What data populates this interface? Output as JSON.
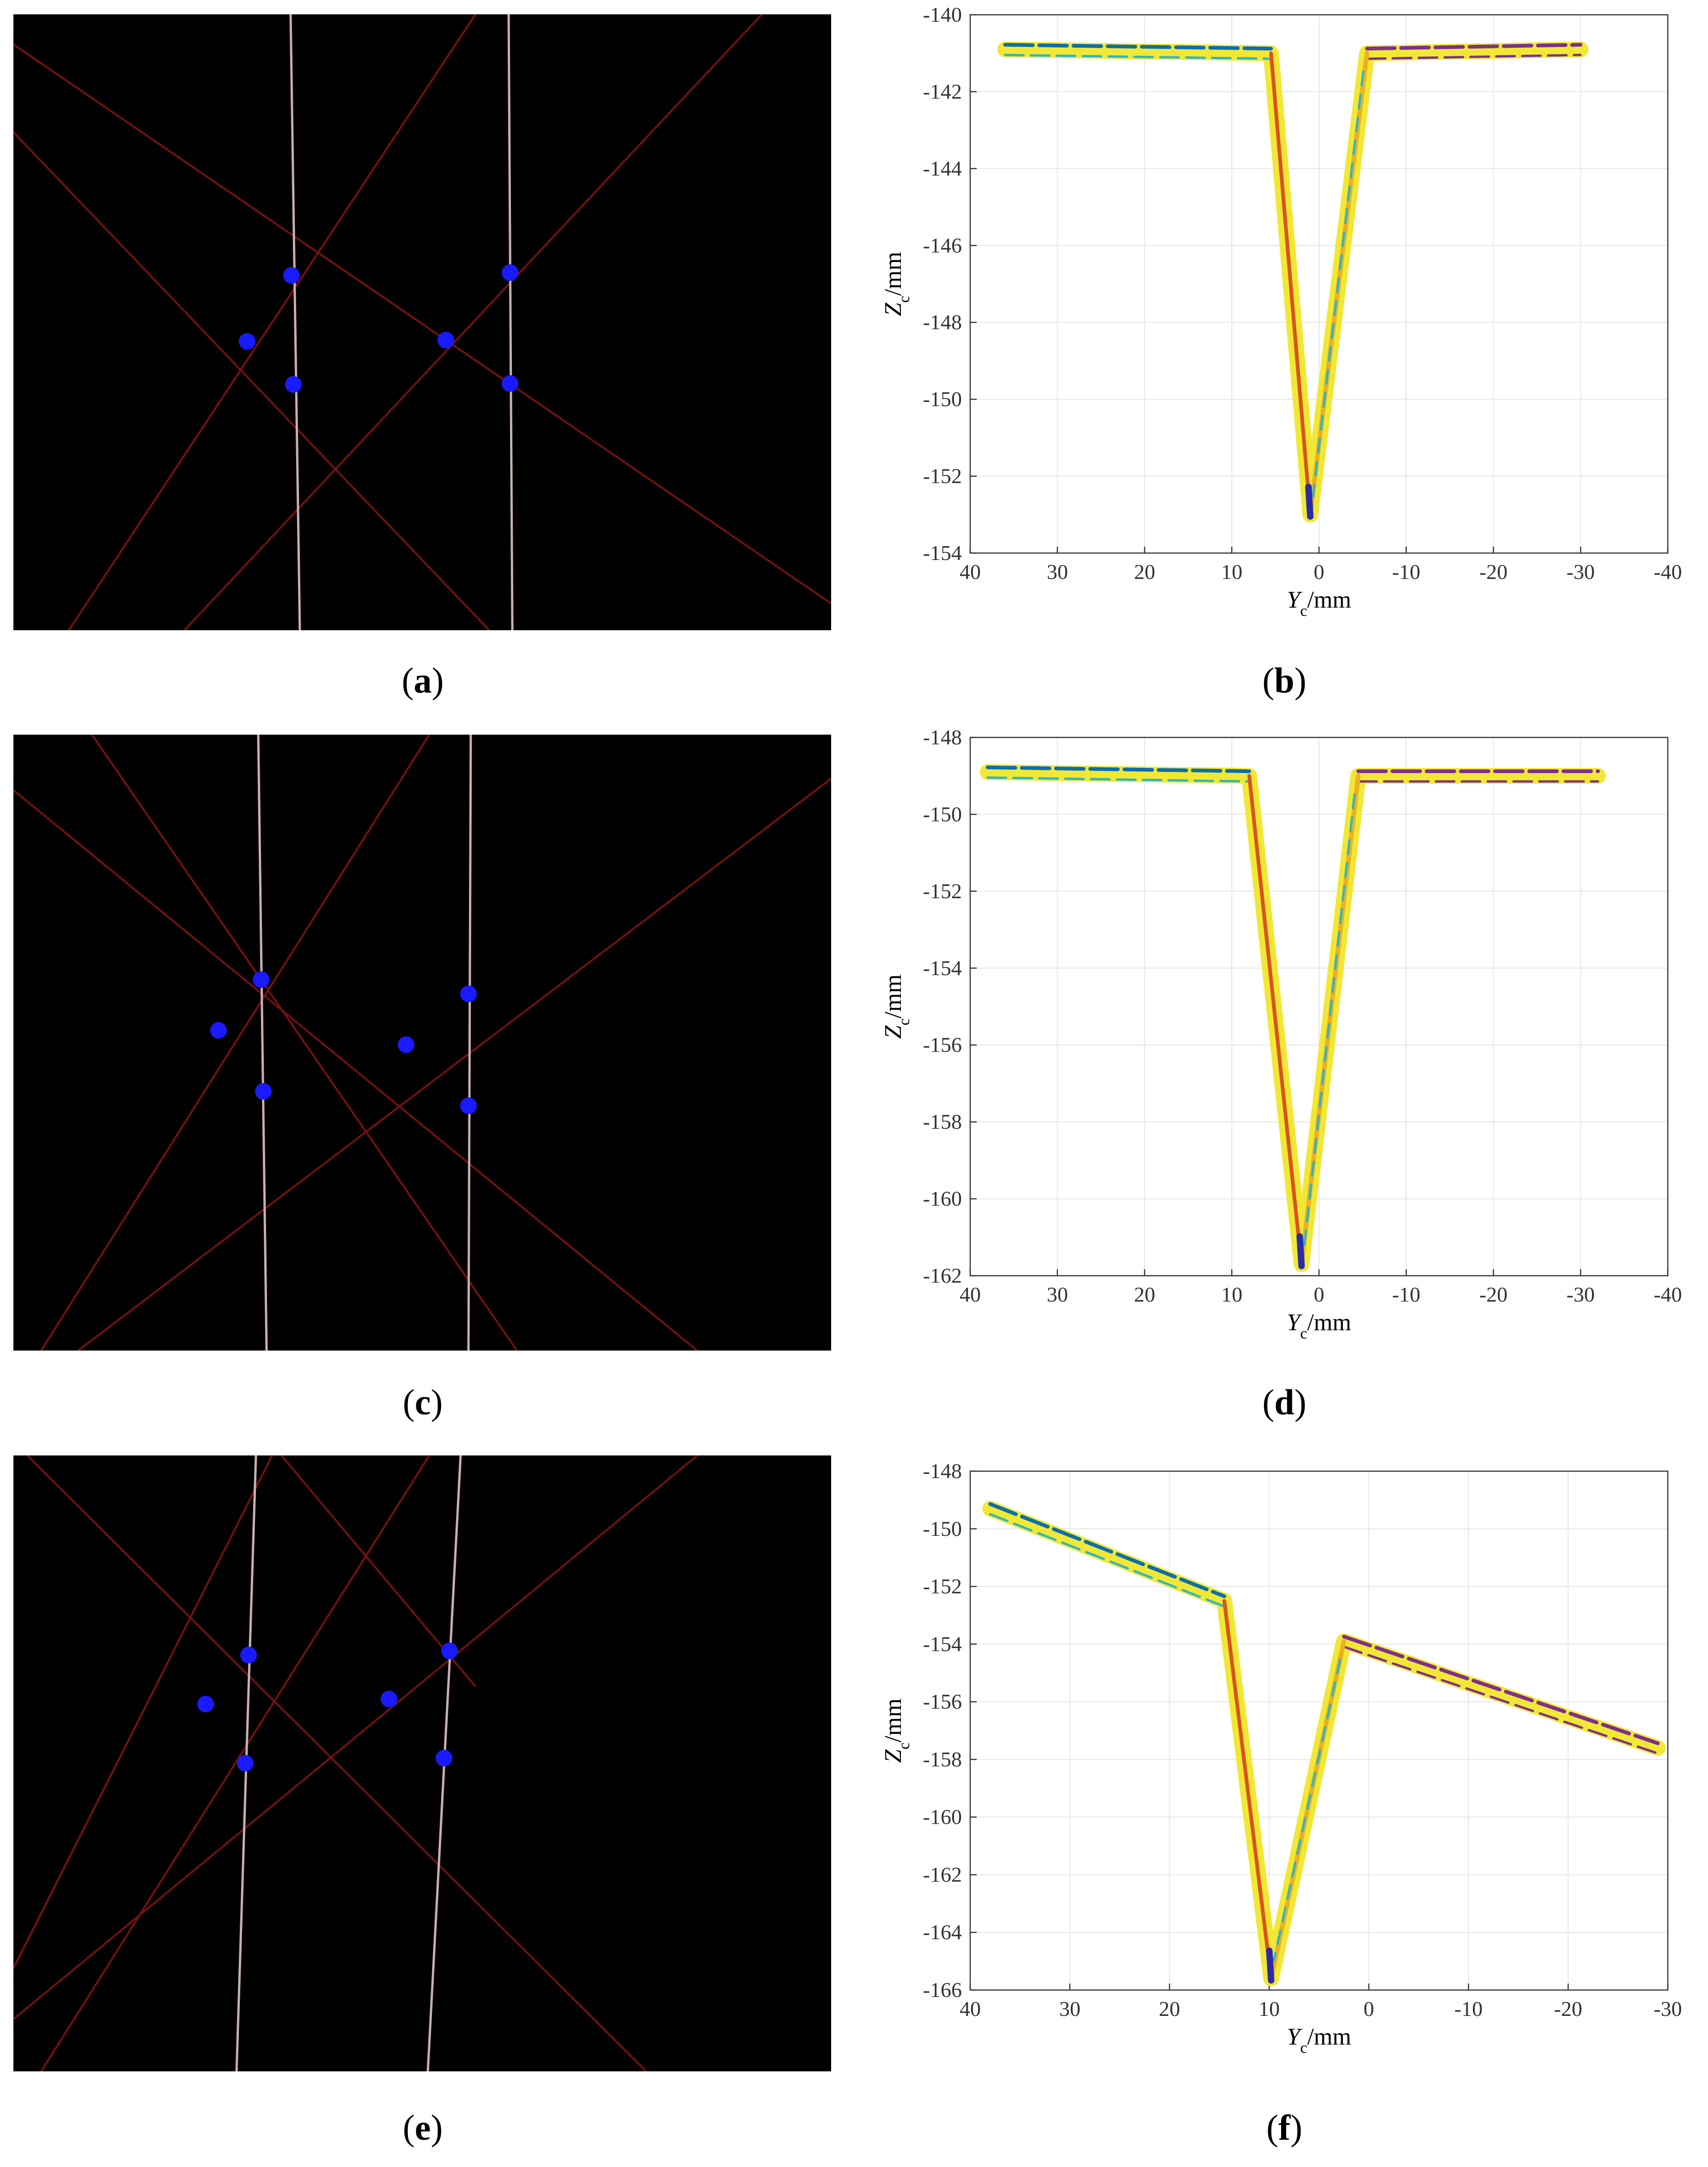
{
  "captions": [
    {
      "id": "a",
      "text": "a"
    },
    {
      "id": "b",
      "text": "b"
    },
    {
      "id": "c",
      "text": "c"
    },
    {
      "id": "d",
      "text": "d"
    },
    {
      "id": "e",
      "text": "e"
    },
    {
      "id": "f",
      "text": "f"
    }
  ],
  "images": [
    {
      "id": "a",
      "points_count": 6
    },
    {
      "id": "c",
      "points_count": 6
    },
    {
      "id": "e",
      "points_count": 6
    }
  ],
  "colors": {
    "laser_line": "#7a1010",
    "feature_point": "#1a1aff",
    "blue": "#0b6eb0",
    "yellow": "#f0e72a",
    "orange": "#d9541a",
    "purple": "#7e2f8e",
    "gold": "#edb120",
    "cyan": "#2fb5c4",
    "deep_blue": "#2b2ba8"
  },
  "chart_data": [
    {
      "id": "b",
      "type": "line",
      "xlabel_main": "Y",
      "xlabel_sub": "c",
      "xlabel_unit": "/mm",
      "ylabel_main": "Z",
      "ylabel_sub": "c",
      "ylabel_unit": "/mm",
      "xlim": [
        40,
        -40
      ],
      "ylim": [
        -154,
        -140
      ],
      "xticks": [
        40,
        30,
        20,
        10,
        0,
        -10,
        -20,
        -30,
        -40
      ],
      "xtick_labels": [
        "40",
        "30",
        "20",
        "10",
        "0",
        "-10",
        "-20",
        "-30",
        "-40"
      ],
      "yticks": [
        -140,
        -142,
        -144,
        -146,
        -148,
        -150,
        -152,
        -154
      ],
      "ytick_labels": [
        "-140",
        "-142",
        "-144",
        "-146",
        "-148",
        "-150",
        "-152",
        "-154"
      ],
      "grid": true,
      "profile": {
        "left_top": [
          36,
          -140.9
        ],
        "left_corner": [
          5.5,
          -141.0
        ],
        "bottom": [
          1,
          -153.0
        ],
        "right_corner": [
          -5.5,
          -141.0
        ],
        "right_top": [
          -30,
          -140.9
        ]
      }
    },
    {
      "id": "d",
      "type": "line",
      "xlabel_main": "Y",
      "xlabel_sub": "c",
      "xlabel_unit": "/mm",
      "ylabel_main": "Z",
      "ylabel_sub": "c",
      "ylabel_unit": "/mm",
      "xlim": [
        40,
        -40
      ],
      "ylim": [
        -162,
        -148
      ],
      "xticks": [
        40,
        30,
        20,
        10,
        0,
        -10,
        -20,
        -30,
        -40
      ],
      "xtick_labels": [
        "40",
        "30",
        "20",
        "10",
        "0",
        "-10",
        "-20",
        "-30",
        "-40"
      ],
      "yticks": [
        -148,
        -150,
        -152,
        -154,
        -156,
        -158,
        -160,
        -162
      ],
      "ytick_labels": [
        "-148",
        "-150",
        "-152",
        "-154",
        "-156",
        "-158",
        "-160",
        "-162"
      ],
      "grid": true,
      "profile": {
        "left_top": [
          38,
          -148.9
        ],
        "left_corner": [
          8,
          -149.0
        ],
        "bottom": [
          2,
          -161.7
        ],
        "right_corner": [
          -4.5,
          -149.0
        ],
        "right_top": [
          -32,
          -149.0
        ]
      }
    },
    {
      "id": "f",
      "type": "line",
      "xlabel_main": "Y",
      "xlabel_sub": "c",
      "xlabel_unit": "/mm",
      "ylabel_main": "Z",
      "ylabel_sub": "c",
      "ylabel_unit": "/mm",
      "xlim": [
        40,
        -30
      ],
      "ylim": [
        -166,
        -148
      ],
      "xticks": [
        40,
        30,
        20,
        10,
        0,
        -10,
        -20,
        -30
      ],
      "xtick_labels": [
        "40",
        "30",
        "20",
        "10",
        "0",
        "-10",
        "-20",
        "-30"
      ],
      "yticks": [
        -148,
        -150,
        -152,
        -154,
        -156,
        -158,
        -160,
        -162,
        -164,
        -166
      ],
      "ytick_labels": [
        "-148",
        "-150",
        "-152",
        "-154",
        "-156",
        "-158",
        "-160",
        "-162",
        "-164",
        "-166"
      ],
      "grid": true,
      "profile": {
        "left_top": [
          38,
          -149.3
        ],
        "left_corner": [
          14.5,
          -152.5
        ],
        "bottom": [
          9.8,
          -165.6
        ],
        "right_corner": [
          2.5,
          -153.9
        ],
        "right_top": [
          -29,
          -157.6
        ]
      }
    }
  ]
}
